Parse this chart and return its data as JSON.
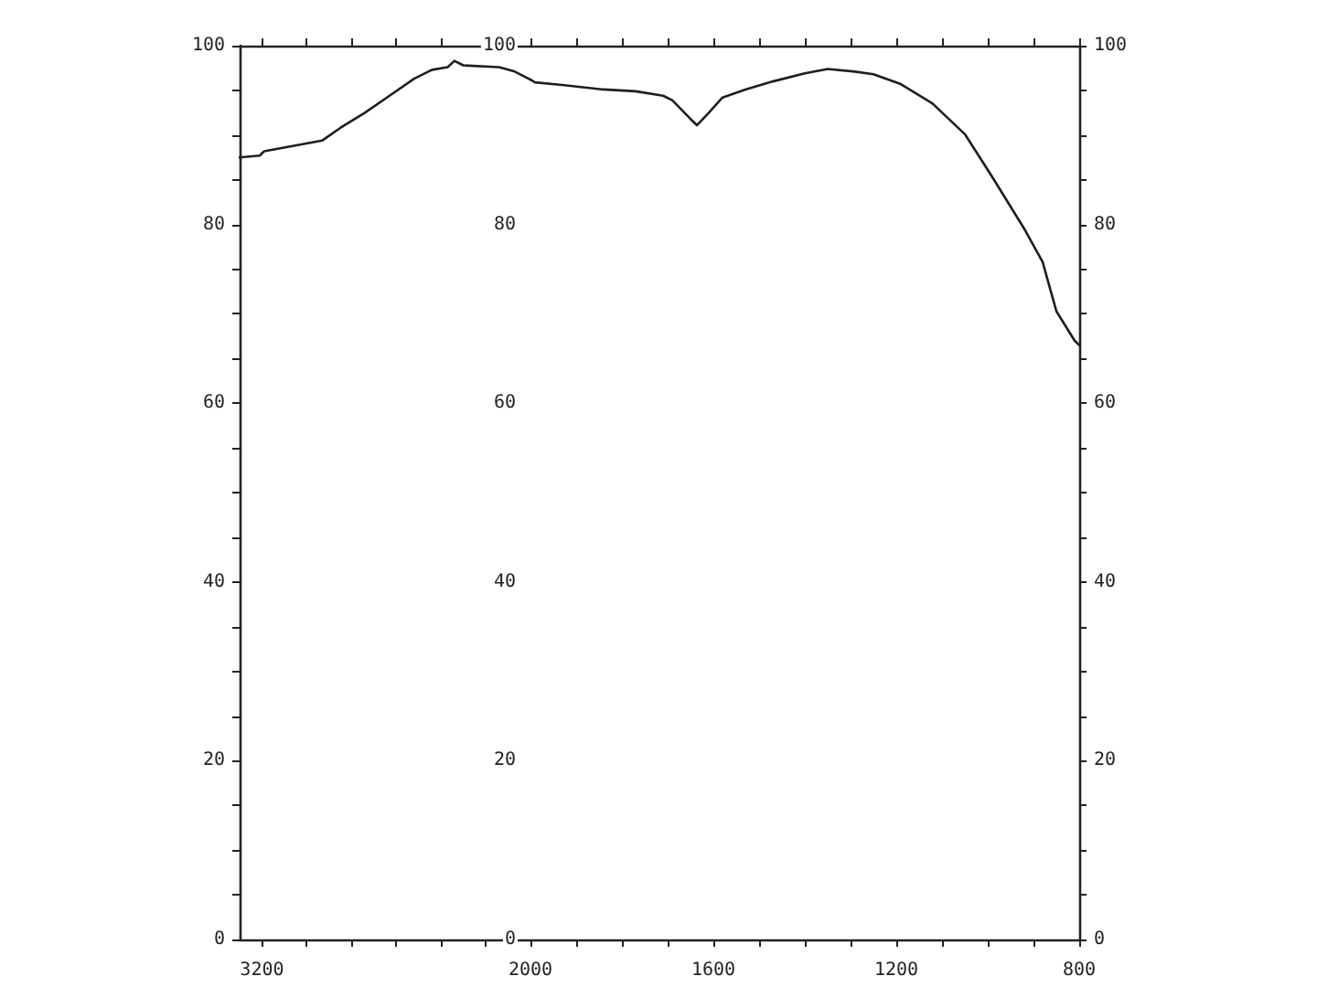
{
  "chart_data": [
    {
      "type": "line",
      "marker": "none",
      "line_style": "solid",
      "x": [
        3300,
        3210,
        3190,
        2930,
        2850,
        2740,
        2630,
        2520,
        2440,
        2370,
        2340,
        2300,
        2140,
        2070,
        2000
      ],
      "series": [
        {
          "color": "#1e1e1e",
          "values": [
            87.5,
            87.7,
            88.2,
            89.4,
            90.8,
            92.5,
            94.4,
            96.3,
            97.3,
            97.6,
            98.3,
            97.8,
            97.6,
            97.1,
            96.2
          ]
        }
      ],
      "xlim": [
        3300,
        2000
      ],
      "xticks": [
        3200,
        {
          "value": 3000,
          "label": null
        },
        {
          "value": 2800,
          "label": null
        },
        {
          "value": 2600,
          "label": null
        },
        {
          "value": 2400,
          "label": null
        },
        {
          "value": 2200,
          "label": null
        },
        2000
      ],
      "ylim": [
        0,
        100
      ],
      "yticks": [
        0,
        {
          "value": 5,
          "label": null
        },
        {
          "value": 10,
          "label": null
        },
        {
          "value": 15,
          "label": null
        },
        20,
        {
          "value": 25,
          "label": null
        },
        {
          "value": 30,
          "label": null
        },
        {
          "value": 35,
          "label": null
        },
        40,
        {
          "value": 45,
          "label": null
        },
        {
          "value": 50,
          "label": null
        },
        {
          "value": 55,
          "label": null
        },
        60,
        {
          "value": 65,
          "label": null
        },
        {
          "value": 70,
          "label": null
        },
        {
          "value": 75,
          "label": null
        },
        80,
        {
          "value": 85,
          "label": null
        },
        {
          "value": 90,
          "label": null
        },
        {
          "value": 95,
          "label": null
        },
        100
      ],
      "y2lim": [
        0,
        100
      ],
      "y2ticks": [
        0,
        20,
        40,
        60,
        80,
        100
      ]
    },
    {
      "type": "line",
      "marker": "none",
      "line_style": "solid",
      "x": [
        2000,
        1990,
        1930,
        1840,
        1770,
        1710,
        1690,
        1650,
        1636,
        1610,
        1580,
        1530,
        1470,
        1400,
        1350,
        1290,
        1250,
        1190,
        1120,
        1050,
        990,
        920,
        880,
        850,
        810,
        800
      ],
      "series": [
        {
          "color": "#1e1e1e",
          "values": [
            96.2,
            95.9,
            95.6,
            95.1,
            94.9,
            94.4,
            93.9,
            91.8,
            91.1,
            92.5,
            94.2,
            95.1,
            96.0,
            96.9,
            97.4,
            97.1,
            96.8,
            95.7,
            93.5,
            90.1,
            85.3,
            79.5,
            75.8,
            70.3,
            67.0,
            66.5
          ]
        }
      ],
      "xlim": [
        2000,
        800
      ],
      "xticks": [
        {
          "value": 2000,
          "label": null
        },
        {
          "value": 1900,
          "label": null
        },
        {
          "value": 1800,
          "label": null
        },
        {
          "value": 1700,
          "label": null
        },
        1600,
        {
          "value": 1500,
          "label": null
        },
        {
          "value": 1400,
          "label": null
        },
        {
          "value": 1300,
          "label": null
        },
        1200,
        {
          "value": 1100,
          "label": null
        },
        {
          "value": 1000,
          "label": null
        },
        {
          "value": 900,
          "label": null
        },
        800
      ],
      "ylim": [
        0,
        100
      ],
      "yticks": [
        0,
        {
          "value": 5,
          "label": null
        },
        {
          "value": 10,
          "label": null
        },
        {
          "value": 15,
          "label": null
        },
        20,
        {
          "value": 25,
          "label": null
        },
        {
          "value": 30,
          "label": null
        },
        {
          "value": 35,
          "label": null
        },
        40,
        {
          "value": 45,
          "label": null
        },
        {
          "value": 50,
          "label": null
        },
        {
          "value": 55,
          "label": null
        },
        60,
        {
          "value": 65,
          "label": null
        },
        {
          "value": 70,
          "label": null
        },
        {
          "value": 75,
          "label": null
        },
        80,
        {
          "value": 85,
          "label": null
        },
        {
          "value": 90,
          "label": null
        },
        {
          "value": 95,
          "label": null
        },
        100
      ]
    }
  ]
}
